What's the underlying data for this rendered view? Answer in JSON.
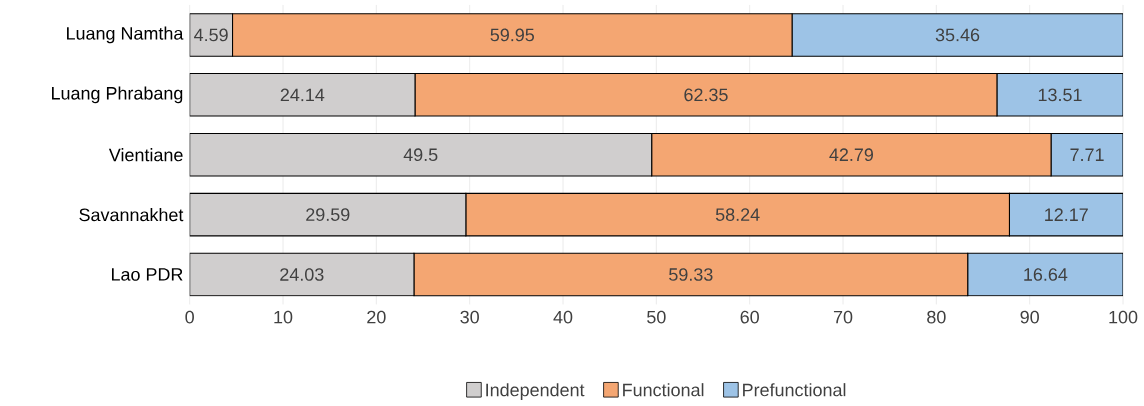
{
  "chart_data": {
    "type": "bar",
    "orientation": "horizontal",
    "stacked": true,
    "categories": [
      "Luang Namtha",
      "Luang Phrabang",
      "Vientiane",
      "Savannakhet",
      "Lao PDR"
    ],
    "series": [
      {
        "name": "Independent",
        "color": "#d0cece",
        "values": [
          4.59,
          24.14,
          49.5,
          29.59,
          24.03
        ]
      },
      {
        "name": "Functional",
        "color": "#f4a672",
        "values": [
          59.95,
          62.35,
          42.79,
          58.24,
          59.33
        ]
      },
      {
        "name": "Prefunctional",
        "color": "#9dc3e6",
        "values": [
          35.46,
          13.51,
          7.71,
          12.17,
          16.64
        ]
      }
    ],
    "xlim": [
      0,
      100
    ],
    "xticks": [
      0,
      10,
      20,
      30,
      40,
      50,
      60,
      70,
      80,
      90,
      100
    ],
    "grid": "x",
    "legend": "bottom",
    "data_labels": true
  }
}
